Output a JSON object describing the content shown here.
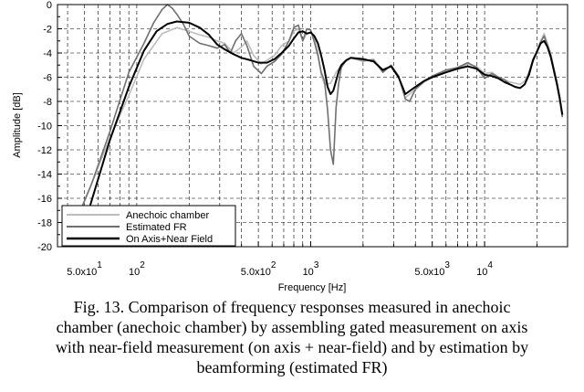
{
  "chart_data": {
    "type": "line",
    "xlabel": "Frequency [Hz]",
    "ylabel": "Amplitude [dB]",
    "xscale": "log",
    "xlim": [
      35,
      30000
    ],
    "ylim": [
      -20,
      0
    ],
    "grid": true,
    "yticks": [
      0,
      -2,
      -4,
      -6,
      -8,
      -10,
      -12,
      -14,
      -16,
      -18,
      -20
    ],
    "xticks": [
      {
        "value": 50,
        "mantissa": "5.0x10",
        "exponent": "1"
      },
      {
        "value": 100,
        "mantissa": "10",
        "exponent": "2"
      },
      {
        "value": 500,
        "mantissa": "5.0x10",
        "exponent": "2"
      },
      {
        "value": 1000,
        "mantissa": "10",
        "exponent": "3"
      },
      {
        "value": 5000,
        "mantissa": "5.0x10",
        "exponent": "3"
      },
      {
        "value": 10000,
        "mantissa": "10",
        "exponent": "4"
      }
    ],
    "legend_position": "bottom-left",
    "series": [
      {
        "name": "Anechoic chamber",
        "color": "#bdbdbd",
        "width": 1.6,
        "x": [
          38,
          45,
          55,
          70,
          90,
          110,
          140,
          170,
          200,
          230,
          260,
          290,
          320,
          360,
          400,
          430,
          470,
          520,
          560,
          620,
          680,
          750,
          800,
          850,
          900,
          950,
          1000,
          1050,
          1100,
          1150,
          1200,
          1300,
          1400,
          1500,
          1700,
          2000,
          2300,
          2600,
          2900,
          3200,
          3500,
          4000,
          4500,
          5000,
          6000,
          7000,
          8000,
          9000,
          10000,
          11000,
          12000,
          13000,
          14000,
          15000,
          16000,
          17000,
          18000,
          19000,
          20000,
          21000,
          22000,
          23000,
          24000,
          25000,
          26000,
          27000,
          28000
        ],
        "y": [
          -20,
          -17.8,
          -14.8,
          -11,
          -7.5,
          -4.5,
          -2.4,
          -1.9,
          -2.2,
          -2.5,
          -2.7,
          -3.0,
          -3.2,
          -4.0,
          -3.5,
          -3.0,
          -4.2,
          -4.9,
          -4.6,
          -4.2,
          -3.4,
          -3.0,
          -2.2,
          -2.0,
          -3.0,
          -2.4,
          -2.3,
          -2.8,
          -4.0,
          -5.8,
          -6.6,
          -6.5,
          -5.6,
          -5.0,
          -4.4,
          -4.7,
          -4.5,
          -5.5,
          -5.0,
          -5.9,
          -7.7,
          -7.0,
          -6.4,
          -6.0,
          -5.5,
          -5.3,
          -4.9,
          -5.1,
          -5.7,
          -5.6,
          -6.0,
          -6.2,
          -6.4,
          -6.5,
          -6.6,
          -6.3,
          -5.7,
          -4.5,
          -3.8,
          -3.0,
          -2.4,
          -3.2,
          -4.0,
          -5.2,
          -6.3,
          -7.6,
          -9.2
        ]
      },
      {
        "name": "Estimated FR",
        "color": "#707070",
        "width": 1.6,
        "x": [
          40,
          46,
          55,
          70,
          90,
          110,
          125,
          140,
          150,
          160,
          170,
          185,
          200,
          230,
          260,
          290,
          320,
          345,
          370,
          400,
          430,
          470,
          520,
          560,
          620,
          680,
          750,
          800,
          850,
          900,
          950,
          1000,
          1050,
          1100,
          1150,
          1200,
          1250,
          1300,
          1350,
          1400,
          1450,
          1500,
          1600,
          1700,
          2000,
          2300,
          2600,
          2900,
          3200,
          3500,
          3700,
          4000,
          4500,
          5000,
          6000,
          7000,
          8000,
          9000,
          10000,
          11000,
          12000,
          13000,
          14000,
          15000,
          16000,
          17000,
          18000,
          19000,
          20000,
          21000,
          22000,
          23000,
          24000,
          25000,
          26000,
          27000,
          28000
        ],
        "y": [
          -20,
          -17.5,
          -14.8,
          -10.5,
          -5.6,
          -3.2,
          -1.5,
          -0.4,
          0.0,
          -0.3,
          -0.8,
          -1.6,
          -2.6,
          -3.2,
          -3.4,
          -3.6,
          -3.3,
          -4.0,
          -3.0,
          -2.4,
          -3.4,
          -5.1,
          -5.7,
          -5.1,
          -4.7,
          -4.1,
          -3.0,
          -1.9,
          -1.7,
          -3.0,
          -2.0,
          -2.1,
          -3.1,
          -4.2,
          -5.6,
          -6.3,
          -8.7,
          -12.0,
          -13.2,
          -8.5,
          -6.5,
          -5.2,
          -4.6,
          -4.4,
          -4.6,
          -4.6,
          -5.6,
          -5.0,
          -5.9,
          -7.8,
          -8.0,
          -7.0,
          -6.3,
          -5.9,
          -5.4,
          -5.2,
          -4.8,
          -5.2,
          -6.1,
          -5.7,
          -6.0,
          -6.2,
          -6.6,
          -6.8,
          -6.9,
          -6.6,
          -5.6,
          -4.5,
          -3.9,
          -3.1,
          -2.6,
          -3.4,
          -4.2,
          -5.5,
          -6.6,
          -7.8,
          -9.3
        ]
      },
      {
        "name": "On Axis+Near Field",
        "color": "#000000",
        "width": 2.0,
        "x": [
          46,
          55,
          70,
          90,
          110,
          130,
          150,
          170,
          200,
          230,
          260,
          290,
          320,
          360,
          400,
          450,
          500,
          560,
          620,
          680,
          750,
          800,
          850,
          900,
          950,
          1000,
          1050,
          1100,
          1150,
          1200,
          1250,
          1300,
          1350,
          1400,
          1450,
          1500,
          1600,
          1700,
          2000,
          2300,
          2600,
          2900,
          3200,
          3500,
          4000,
          4500,
          5000,
          6000,
          7000,
          8000,
          9000,
          10000,
          11000,
          12000,
          13000,
          14000,
          15000,
          16000,
          17000,
          18000,
          19000,
          20000,
          21000,
          22000,
          23000,
          24000,
          25000,
          26000,
          27000,
          28000
        ],
        "y": [
          -20,
          -16.2,
          -11.2,
          -6.8,
          -3.8,
          -2.2,
          -1.6,
          -1.4,
          -1.5,
          -1.9,
          -2.5,
          -3.3,
          -3.7,
          -4.1,
          -4.4,
          -4.6,
          -4.8,
          -4.8,
          -4.5,
          -4.0,
          -3.4,
          -2.8,
          -2.3,
          -2.2,
          -2.4,
          -2.3,
          -2.6,
          -3.2,
          -4.2,
          -5.4,
          -6.8,
          -7.4,
          -7.1,
          -6.3,
          -5.5,
          -5.0,
          -4.6,
          -4.4,
          -4.5,
          -4.7,
          -5.4,
          -5.1,
          -6.0,
          -7.4,
          -6.8,
          -6.3,
          -6.0,
          -5.6,
          -5.3,
          -5.1,
          -5.3,
          -5.8,
          -5.9,
          -6.1,
          -6.4,
          -6.6,
          -6.8,
          -6.9,
          -6.6,
          -5.8,
          -4.6,
          -3.9,
          -3.2,
          -3.0,
          -3.5,
          -4.3,
          -5.4,
          -6.5,
          -7.7,
          -9.1
        ]
      }
    ]
  },
  "caption": {
    "line1": "Fig. 13.  Comparison of frequency responses measured in anechoic",
    "line2": "chamber (anechoic chamber) by assembling gated measurement on axis",
    "line3": "with near-field measurement (on axis + near-field) and by estimation by",
    "line4": "beamforming (estimated FR)"
  }
}
